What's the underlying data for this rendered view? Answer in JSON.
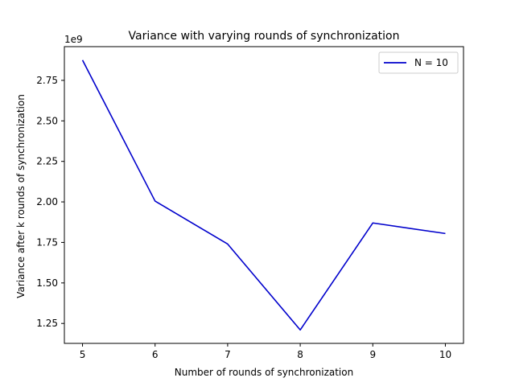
{
  "chart_data": {
    "type": "line",
    "title": "Variance with varying rounds of synchronization",
    "xlabel": "Number of rounds of synchronization",
    "ylabel": "Variance after k rounds of synchronization",
    "y_offset_label": "1e9",
    "x": [
      5,
      6,
      7,
      8,
      9,
      10
    ],
    "series": [
      {
        "name": "N = 10",
        "color": "#0000cc",
        "values": [
          2875000000.0,
          2005000000.0,
          1740000000.0,
          1210000000.0,
          1870000000.0,
          1805000000.0
        ]
      }
    ],
    "xticks": [
      5,
      6,
      7,
      8,
      9,
      10
    ],
    "xtick_labels": [
      "5",
      "6",
      "7",
      "8",
      "9",
      "10"
    ],
    "yticks": [
      1250000000.0,
      1500000000.0,
      1750000000.0,
      2000000000.0,
      2250000000.0,
      2500000000.0,
      2750000000.0
    ],
    "ytick_labels": [
      "1.25",
      "1.50",
      "1.75",
      "2.00",
      "2.25",
      "2.50",
      "2.75"
    ],
    "xlim": [
      4.75,
      10.25
    ],
    "ylim": [
      1127000000.0,
      2958000000.0
    ],
    "grid": false,
    "legend_position": "upper right"
  }
}
